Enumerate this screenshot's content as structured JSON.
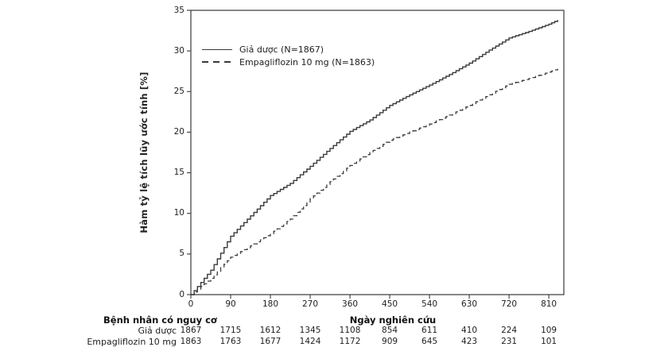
{
  "figure": {
    "background": "#ffffff",
    "ink_color": "#3a3a3a",
    "text_color": "#222222"
  },
  "chart_data": {
    "type": "line",
    "subtype": "kaplan-meier-step",
    "title": "",
    "xlabel": "Ngày nghiên cứu",
    "ylabel": "Hàm tỷ lệ tích lũy ước tính [%]",
    "xlim": [
      0,
      844
    ],
    "ylim": [
      0,
      35
    ],
    "x_ticks": [
      0,
      90,
      180,
      270,
      360,
      450,
      540,
      630,
      720,
      810
    ],
    "y_ticks": [
      0,
      5,
      10,
      15,
      20,
      25,
      30,
      35
    ],
    "grid": false,
    "legend_position": "top-left-inside",
    "series": [
      {
        "name": "Giả dược (N=1867)",
        "style": "solid",
        "x": [
          0,
          45,
          90,
          135,
          180,
          225,
          270,
          315,
          360,
          405,
          450,
          495,
          540,
          585,
          630,
          675,
          720,
          765,
          810,
          830
        ],
        "y": [
          0,
          3.0,
          7.2,
          9.7,
          12.2,
          13.7,
          15.8,
          18.0,
          20.1,
          21.5,
          23.3,
          24.6,
          25.8,
          27.1,
          28.5,
          30.1,
          31.6,
          32.4,
          33.3,
          33.8
        ]
      },
      {
        "name": "Empagliflozin 10 mg (N=1863)",
        "style": "dashed",
        "x": [
          0,
          45,
          90,
          135,
          180,
          225,
          270,
          315,
          360,
          405,
          450,
          495,
          540,
          585,
          630,
          675,
          720,
          765,
          810,
          830
        ],
        "y": [
          0,
          2.0,
          4.6,
          6.0,
          7.5,
          9.3,
          11.8,
          13.9,
          15.9,
          17.5,
          19.0,
          20.0,
          21.0,
          22.1,
          23.3,
          24.6,
          25.9,
          26.6,
          27.4,
          27.8
        ]
      }
    ]
  },
  "risk_table": {
    "header": "Bệnh nhân có nguy cơ",
    "rows": [
      {
        "label": "Giả dược",
        "values": [
          1867,
          1715,
          1612,
          1345,
          1108,
          854,
          611,
          410,
          224,
          109
        ]
      },
      {
        "label": "Empagliflozin 10 mg",
        "values": [
          1863,
          1763,
          1677,
          1424,
          1172,
          909,
          645,
          423,
          231,
          101
        ]
      }
    ]
  }
}
